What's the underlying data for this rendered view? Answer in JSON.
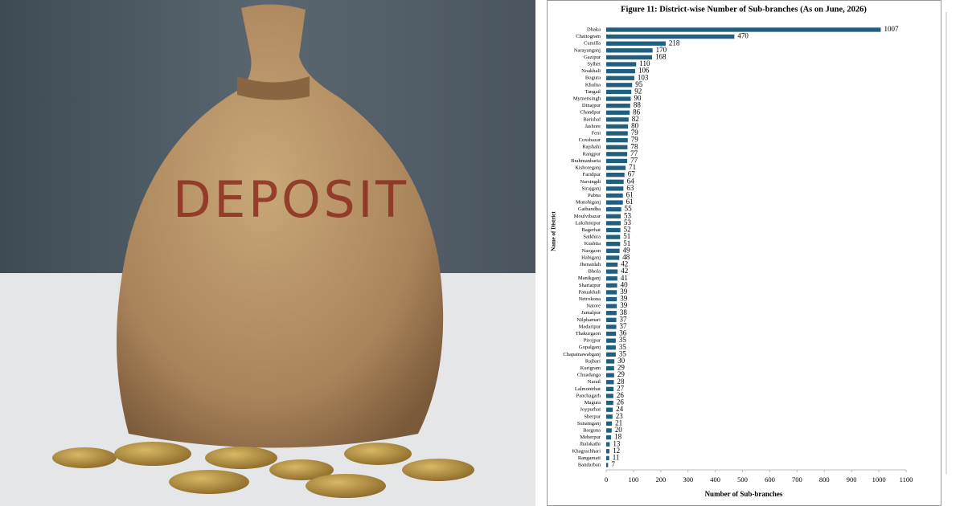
{
  "image": {
    "label": "DEPOSIT"
  },
  "chart_data": {
    "type": "hbar",
    "title": "Figure 11: District-wise Number of Sub-branches (As on June, 2026)",
    "xlabel": "Number of Sub-branches",
    "ylabel": "Name of District",
    "color": "#1f5f80",
    "categories": [
      "Dhaka",
      "Chattogram",
      "Cumilla",
      "Narayanganj",
      "Gazipur",
      "Sylhet",
      "Noakhali",
      "Bogura",
      "Khulna",
      "Tangail",
      "Mymensingh",
      "Dinajpur",
      "Chandpur",
      "Barishal",
      "Jashore",
      "Feni",
      "Coxsbazar",
      "Rajshahi",
      "Rangpur",
      "Brahmanbaria",
      "Kishoreganj",
      "Faridpur",
      "Narsingdi",
      "Sirajganj",
      "Pabna",
      "Munshiganj",
      "Gaibandha",
      "Moulvibazar",
      "Lakshmipur",
      "Bagerhat",
      "Satkhira",
      "Kushtia",
      "Naogaon",
      "Habiganj",
      "Jhenaidah",
      "Bhola",
      "Manikganj",
      "Shariatpur",
      "Patuakhali",
      "Netrokona",
      "Natore",
      "Jamalpur",
      "Nilphamari",
      "Madaripur",
      "Thakurgaon",
      "Pirojpur",
      "Gopalganj",
      "Chapainawabganj",
      "Rajbari",
      "Kurigram",
      "Chuadanga",
      "Narail",
      "Lalmonirhat",
      "Panchagarh",
      "Magura",
      "Joypurhat",
      "Sherpur",
      "Sunamganj",
      "Barguna",
      "Meherpur",
      "Jhalakathi",
      "Khagrachhari",
      "Rangamati",
      "Bandarban"
    ],
    "values": [
      1007,
      470,
      218,
      170,
      168,
      110,
      106,
      103,
      95,
      92,
      90,
      88,
      86,
      82,
      80,
      79,
      79,
      78,
      77,
      77,
      71,
      67,
      64,
      63,
      61,
      61,
      55,
      53,
      53,
      52,
      51,
      51,
      49,
      48,
      42,
      42,
      41,
      40,
      39,
      39,
      39,
      38,
      37,
      37,
      36,
      35,
      35,
      35,
      30,
      29,
      29,
      28,
      27,
      26,
      26,
      24,
      23,
      21,
      20,
      18,
      13,
      12,
      11,
      7
    ],
    "xlim": [
      0,
      1100
    ],
    "xticks": [
      0,
      100,
      200,
      300,
      400,
      500,
      600,
      700,
      800,
      900,
      1000,
      1100
    ]
  }
}
